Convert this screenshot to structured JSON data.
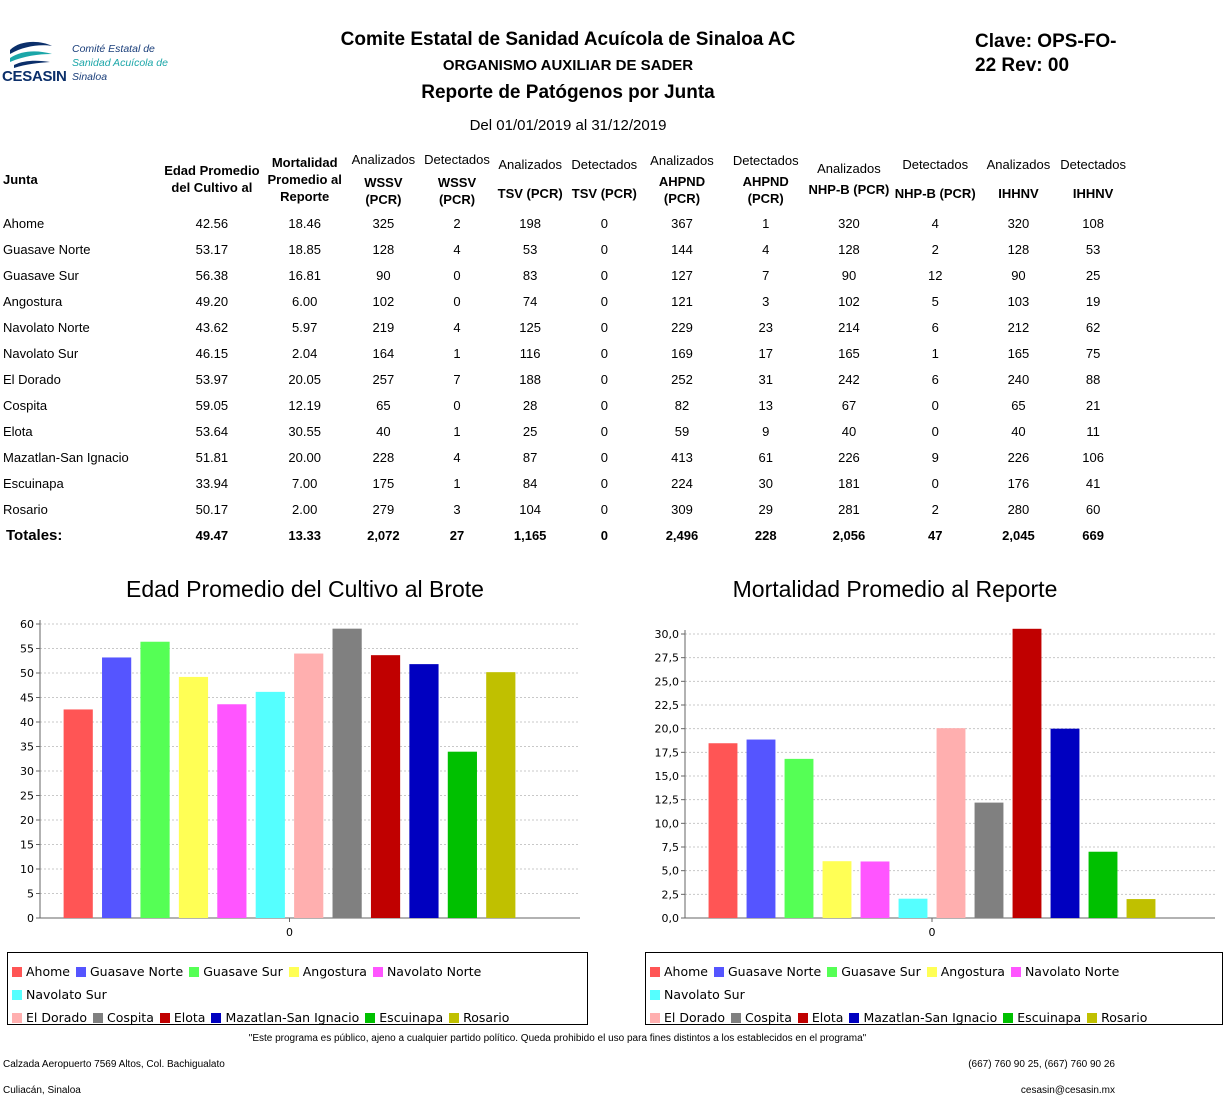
{
  "logo": {
    "word": "CESASIN",
    "line1": "Comité Estatal de",
    "line2": "Sanidad Acuícola de",
    "line3": "Sinaloa"
  },
  "header": {
    "title": "Comite Estatal de Sanidad Acuícola de Sinaloa AC",
    "subtitle": "ORGANISMO AUXILIAR DE SADER",
    "report": "Reporte de Patógenos por Junta",
    "dates": "Del 01/01/2019 al 31/12/2019",
    "clave_line1": "Clave: OPS-FO-",
    "clave_line2": "22 Rev: 00"
  },
  "table": {
    "headers": {
      "junta": "Junta",
      "edad": "Edad Promedio del Cultivo al",
      "mortalidad": "Mortalidad Promedio al Reporte",
      "analizados": "Analizados",
      "detectados": "Detectados",
      "wssv_a": "WSSV (PCR)",
      "wssv_d": "WSSV (PCR)",
      "tsv_a": "TSV (PCR)",
      "tsv_d": "TSV (PCR)",
      "ahpnd_a": "AHPND (PCR)",
      "ahpnd_d": "AHPND (PCR)",
      "nhp_a": "NHP-B (PCR)",
      "nhp_d": "NHP-B (PCR)",
      "ihhnv_a": "IHHNV",
      "ihhnv_d": "IHHNV"
    },
    "rows": [
      [
        "Ahome",
        "42.56",
        "18.46",
        "325",
        "2",
        "198",
        "0",
        "367",
        "1",
        "320",
        "4",
        "320",
        "108"
      ],
      [
        "Guasave Norte",
        "53.17",
        "18.85",
        "128",
        "4",
        "53",
        "0",
        "144",
        "4",
        "128",
        "2",
        "128",
        "53"
      ],
      [
        "Guasave Sur",
        "56.38",
        "16.81",
        "90",
        "0",
        "83",
        "0",
        "127",
        "7",
        "90",
        "12",
        "90",
        "25"
      ],
      [
        "Angostura",
        "49.20",
        "6.00",
        "102",
        "0",
        "74",
        "0",
        "121",
        "3",
        "102",
        "5",
        "103",
        "19"
      ],
      [
        "Navolato Norte",
        "43.62",
        "5.97",
        "219",
        "4",
        "125",
        "0",
        "229",
        "23",
        "214",
        "6",
        "212",
        "62"
      ],
      [
        "Navolato Sur",
        "46.15",
        "2.04",
        "164",
        "1",
        "116",
        "0",
        "169",
        "17",
        "165",
        "1",
        "165",
        "75"
      ],
      [
        "El Dorado",
        "53.97",
        "20.05",
        "257",
        "7",
        "188",
        "0",
        "252",
        "31",
        "242",
        "6",
        "240",
        "88"
      ],
      [
        "Cospita",
        "59.05",
        "12.19",
        "65",
        "0",
        "28",
        "0",
        "82",
        "13",
        "67",
        "0",
        "65",
        "21"
      ],
      [
        "Elota",
        "53.64",
        "30.55",
        "40",
        "1",
        "25",
        "0",
        "59",
        "9",
        "40",
        "0",
        "40",
        "11"
      ],
      [
        "Mazatlan-San Ignacio",
        "51.81",
        "20.00",
        "228",
        "4",
        "87",
        "0",
        "413",
        "61",
        "226",
        "9",
        "226",
        "106"
      ],
      [
        "Escuinapa",
        "33.94",
        "7.00",
        "175",
        "1",
        "84",
        "0",
        "224",
        "30",
        "181",
        "0",
        "176",
        "41"
      ],
      [
        "Rosario",
        "50.17",
        "2.00",
        "279",
        "3",
        "104",
        "0",
        "309",
        "29",
        "281",
        "2",
        "280",
        "60"
      ]
    ],
    "totals": [
      "Totales:",
      "49.47",
      "13.33",
      "2,072",
      "27",
      "1,165",
      "0",
      "2,496",
      "228",
      "2,056",
      "47",
      "2,045",
      "669"
    ]
  },
  "chart_data": [
    {
      "type": "bar",
      "title": "Edad Promedio del Cultivo al Brote",
      "categories": [
        "0"
      ],
      "series": [
        {
          "name": "Ahome",
          "values": [
            42.56
          ],
          "color": "#ff5555"
        },
        {
          "name": "Guasave Norte",
          "values": [
            53.17
          ],
          "color": "#5555ff"
        },
        {
          "name": "Guasave Sur",
          "values": [
            56.38
          ],
          "color": "#55ff55"
        },
        {
          "name": "Angostura",
          "values": [
            49.2
          ],
          "color": "#ffff55"
        },
        {
          "name": "Navolato Norte",
          "values": [
            43.62
          ],
          "color": "#ff55ff"
        },
        {
          "name": "Navolato Sur",
          "values": [
            46.15
          ],
          "color": "#55ffff"
        },
        {
          "name": "El Dorado",
          "values": [
            53.97
          ],
          "color": "#ffafaf"
        },
        {
          "name": "Cospita",
          "values": [
            59.05
          ],
          "color": "#808080"
        },
        {
          "name": "Elota",
          "values": [
            53.64
          ],
          "color": "#c00000"
        },
        {
          "name": "Mazatlan-San Ignacio",
          "values": [
            51.81
          ],
          "color": "#0000c0"
        },
        {
          "name": "Escuinapa",
          "values": [
            33.94
          ],
          "color": "#00c000"
        },
        {
          "name": "Rosario",
          "values": [
            50.17
          ],
          "color": "#c0c000"
        }
      ],
      "ylim": [
        0,
        60
      ],
      "yticks": [
        "0",
        "5",
        "10",
        "15",
        "20",
        "25",
        "30",
        "35",
        "40",
        "45",
        "50",
        "55",
        "60"
      ],
      "grid": true,
      "legend": "bottom"
    },
    {
      "type": "bar",
      "title": "Mortalidad Promedio al Reporte",
      "categories": [
        "0"
      ],
      "series": [
        {
          "name": "Ahome",
          "values": [
            18.46
          ],
          "color": "#ff5555"
        },
        {
          "name": "Guasave Norte",
          "values": [
            18.85
          ],
          "color": "#5555ff"
        },
        {
          "name": "Guasave Sur",
          "values": [
            16.81
          ],
          "color": "#55ff55"
        },
        {
          "name": "Angostura",
          "values": [
            6.0
          ],
          "color": "#ffff55"
        },
        {
          "name": "Navolato Norte",
          "values": [
            5.97
          ],
          "color": "#ff55ff"
        },
        {
          "name": "Navolato Sur",
          "values": [
            2.04
          ],
          "color": "#55ffff"
        },
        {
          "name": "El Dorado",
          "values": [
            20.05
          ],
          "color": "#ffafaf"
        },
        {
          "name": "Cospita",
          "values": [
            12.19
          ],
          "color": "#808080"
        },
        {
          "name": "Elota",
          "values": [
            30.55
          ],
          "color": "#c00000"
        },
        {
          "name": "Mazatlan-San Ignacio",
          "values": [
            20.0
          ],
          "color": "#0000c0"
        },
        {
          "name": "Escuinapa",
          "values": [
            7.0
          ],
          "color": "#00c000"
        },
        {
          "name": "Rosario",
          "values": [
            2.0
          ],
          "color": "#c0c000"
        }
      ],
      "ylim": [
        0,
        30
      ],
      "yticks": [
        "0,0",
        "2,5",
        "5,0",
        "7,5",
        "10,0",
        "12,5",
        "15,0",
        "17,5",
        "20,0",
        "22,5",
        "25,0",
        "27,5",
        "30,0"
      ],
      "grid": true,
      "legend": "bottom"
    }
  ],
  "footer": {
    "note": "\"Este programa es público, ajeno a cualquier partido político. Queda prohibido el uso para fines distintos a los establecidos en el programa\"",
    "address": "Calzada Aeropuerto 7569 Altos, Col. Bachigualato",
    "city": "Culiacán, Sinaloa",
    "phone": "(667) 760 90 25, (667) 760 90 26",
    "email": "cesasin@cesasin.mx"
  }
}
